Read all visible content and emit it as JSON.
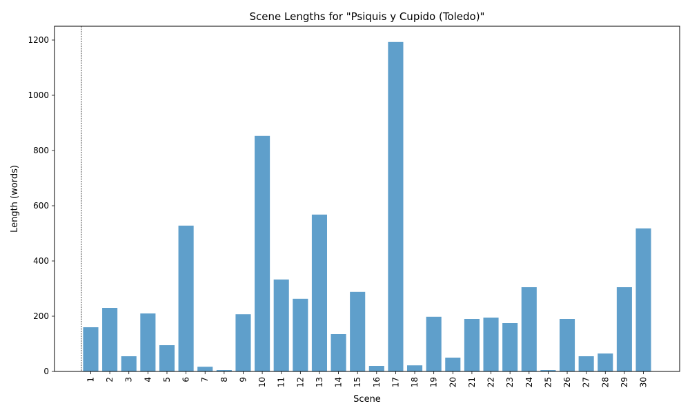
{
  "chart_data": {
    "type": "bar",
    "title": "Scene Lengths for \"Psiquis y Cupido (Toledo)\"",
    "xlabel": "Scene",
    "ylabel": "Length (words)",
    "categories": [
      "1",
      "2",
      "3",
      "4",
      "5",
      "6",
      "7",
      "8",
      "9",
      "10",
      "11",
      "12",
      "13",
      "14",
      "15",
      "16",
      "17",
      "18",
      "19",
      "20",
      "21",
      "22",
      "23",
      "24",
      "25",
      "26",
      "27",
      "28",
      "29",
      "30"
    ],
    "values": [
      160,
      230,
      55,
      210,
      95,
      528,
      17,
      5,
      207,
      853,
      333,
      263,
      568,
      135,
      288,
      20,
      1193,
      22,
      198,
      50,
      190,
      195,
      175,
      305,
      5,
      190,
      55,
      65,
      305,
      518
    ],
    "yticks": [
      0,
      200,
      400,
      600,
      800,
      1000,
      1200
    ],
    "ylim": [
      0,
      1250
    ],
    "bar_color": "#5f9fcb",
    "grid": false,
    "reference_line": "vertical dashed line at left of first bar"
  }
}
